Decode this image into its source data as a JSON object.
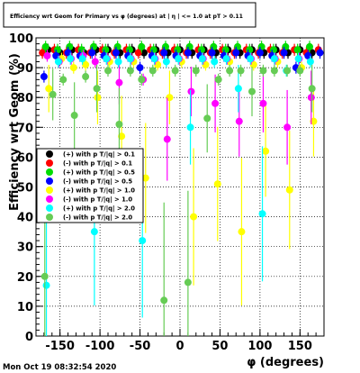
{
  "chart_data": {
    "type": "scatter",
    "title": "Efficiency wrt Geom for Primary vs φ (degrees) at | η | <= 1.0 at pT > 0.11",
    "xlabel": "φ (degrees)",
    "ylabel": "Efficiency wrt Geom (%)",
    "xlim": [
      -180,
      180
    ],
    "ylim": [
      0,
      100
    ],
    "xticks": [
      -150,
      -100,
      -50,
      0,
      50,
      100,
      150
    ],
    "yticks": [
      0,
      10,
      20,
      30,
      40,
      50,
      60,
      70,
      80,
      90,
      100
    ],
    "grid": true,
    "legend_position": "left, middle",
    "timestamp": "Mon Oct 19 08:32:54 2020",
    "series": [
      {
        "name": "(+) with p T/|q| > 0.1",
        "color": "#000000",
        "points": [
          [
            -165,
            96
          ],
          [
            -150,
            95
          ],
          [
            -135,
            96
          ],
          [
            -120,
            95
          ],
          [
            -105,
            96
          ],
          [
            -90,
            96
          ],
          [
            -75,
            95
          ],
          [
            -60,
            96
          ],
          [
            -45,
            95
          ],
          [
            -30,
            96
          ],
          [
            -15,
            95
          ],
          [
            0,
            96
          ],
          [
            15,
            95
          ],
          [
            30,
            96
          ],
          [
            45,
            95
          ],
          [
            60,
            96
          ],
          [
            75,
            95
          ],
          [
            90,
            96
          ],
          [
            105,
            95
          ],
          [
            120,
            96
          ],
          [
            135,
            95
          ],
          [
            150,
            96
          ],
          [
            165,
            95
          ]
        ]
      },
      {
        "name": "(-) with p T/|q| > 0.1",
        "color": "#ff0000",
        "points": [
          [
            -172,
            95
          ],
          [
            -157,
            96
          ],
          [
            -142,
            95
          ],
          [
            -127,
            96
          ],
          [
            -112,
            95
          ],
          [
            -97,
            96
          ],
          [
            -82,
            95
          ],
          [
            -67,
            96
          ],
          [
            -52,
            95
          ],
          [
            -37,
            96
          ],
          [
            -22,
            95
          ],
          [
            -7,
            96
          ],
          [
            8,
            95
          ],
          [
            23,
            96
          ],
          [
            38,
            95
          ],
          [
            53,
            96
          ],
          [
            68,
            95
          ],
          [
            83,
            96
          ],
          [
            98,
            95
          ],
          [
            113,
            96
          ],
          [
            128,
            95
          ],
          [
            143,
            96
          ],
          [
            158,
            95
          ],
          [
            173,
            96
          ]
        ]
      },
      {
        "name": "(+) with p T/|q| > 0.5",
        "color": "#00dd00",
        "points": [
          [
            -168,
            97
          ],
          [
            -153,
            96
          ],
          [
            -138,
            97
          ],
          [
            -123,
            96
          ],
          [
            -108,
            97
          ],
          [
            -93,
            96
          ],
          [
            -78,
            97
          ],
          [
            -63,
            96
          ],
          [
            -48,
            97
          ],
          [
            -33,
            96
          ],
          [
            -18,
            97
          ],
          [
            -3,
            96
          ],
          [
            12,
            97
          ],
          [
            27,
            96
          ],
          [
            42,
            97
          ],
          [
            57,
            96
          ],
          [
            72,
            97
          ],
          [
            87,
            96
          ],
          [
            102,
            97
          ],
          [
            117,
            96
          ],
          [
            132,
            97
          ],
          [
            147,
            96
          ],
          [
            162,
            97
          ]
        ]
      },
      {
        "name": "(-) with p T/|q| > 0.5",
        "color": "#0000ff",
        "points": [
          [
            -170,
            87
          ],
          [
            -155,
            94
          ],
          [
            -140,
            95
          ],
          [
            -125,
            94
          ],
          [
            -110,
            95
          ],
          [
            -95,
            94
          ],
          [
            -80,
            95
          ],
          [
            -65,
            94
          ],
          [
            -50,
            90
          ],
          [
            -35,
            94
          ],
          [
            -20,
            95
          ],
          [
            -5,
            94
          ],
          [
            10,
            95
          ],
          [
            25,
            94
          ],
          [
            40,
            95
          ],
          [
            55,
            94
          ],
          [
            70,
            95
          ],
          [
            85,
            94
          ],
          [
            100,
            95
          ],
          [
            115,
            94
          ],
          [
            130,
            95
          ],
          [
            145,
            90
          ],
          [
            160,
            94
          ],
          [
            175,
            95
          ]
        ]
      },
      {
        "name": "(+) with p T/|q| > 1.0",
        "color": "#ffff00",
        "points": [
          [
            -164,
            83
          ],
          [
            -148,
            93
          ],
          [
            -133,
            90
          ],
          [
            -118,
            91
          ],
          [
            -103,
            80
          ],
          [
            -88,
            92
          ],
          [
            -73,
            67
          ],
          [
            -58,
            92
          ],
          [
            -43,
            53
          ],
          [
            -28,
            91
          ],
          [
            -13,
            80
          ],
          [
            2,
            92
          ],
          [
            17,
            40
          ],
          [
            32,
            91
          ],
          [
            47,
            51
          ],
          [
            62,
            92
          ],
          [
            77,
            35
          ],
          [
            92,
            91
          ],
          [
            107,
            62
          ],
          [
            122,
            92
          ],
          [
            137,
            49
          ],
          [
            152,
            90
          ],
          [
            167,
            72
          ]
        ]
      },
      {
        "name": "(-) with p T/|q| > 1.0",
        "color": "#ff00ff",
        "points": [
          [
            -166,
            94
          ],
          [
            -151,
            92
          ],
          [
            -136,
            93
          ],
          [
            -121,
            94
          ],
          [
            -106,
            92
          ],
          [
            -91,
            93
          ],
          [
            -76,
            85
          ],
          [
            -61,
            93
          ],
          [
            -46,
            86
          ],
          [
            -31,
            93
          ],
          [
            -16,
            66
          ],
          [
            -1,
            93
          ],
          [
            14,
            82
          ],
          [
            29,
            93
          ],
          [
            44,
            78
          ],
          [
            59,
            93
          ],
          [
            74,
            72
          ],
          [
            89,
            93
          ],
          [
            104,
            78
          ],
          [
            119,
            93
          ],
          [
            134,
            70
          ],
          [
            149,
            93
          ],
          [
            164,
            80
          ]
        ]
      },
      {
        "name": "(+) with p T/|q| > 2.0",
        "color": "#00ffff",
        "points": [
          [
            -167,
            17
          ],
          [
            -152,
            92
          ],
          [
            -137,
            93
          ],
          [
            -122,
            93
          ],
          [
            -107,
            35
          ],
          [
            -92,
            93
          ],
          [
            -77,
            92
          ],
          [
            -62,
            93
          ],
          [
            -47,
            32
          ],
          [
            -32,
            93
          ],
          [
            -17,
            92
          ],
          [
            -2,
            93
          ],
          [
            13,
            70
          ],
          [
            28,
            93
          ],
          [
            43,
            92
          ],
          [
            58,
            93
          ],
          [
            73,
            83
          ],
          [
            88,
            93
          ],
          [
            103,
            41
          ],
          [
            118,
            93
          ],
          [
            133,
            89
          ],
          [
            148,
            93
          ],
          [
            163,
            92
          ]
        ]
      },
      {
        "name": "(-) with p T/|q| > 2.0",
        "color": "#66cc55",
        "points": [
          [
            -169,
            20
          ],
          [
            -159,
            81
          ],
          [
            -146,
            86
          ],
          [
            -132,
            74
          ],
          [
            -118,
            87
          ],
          [
            -104,
            83
          ],
          [
            -90,
            89
          ],
          [
            -76,
            71
          ],
          [
            -62,
            89
          ],
          [
            -48,
            86
          ],
          [
            -34,
            89
          ],
          [
            -20,
            12
          ],
          [
            -6,
            89
          ],
          [
            10,
            18
          ],
          [
            20,
            89
          ],
          [
            34,
            73
          ],
          [
            48,
            86
          ],
          [
            62,
            89
          ],
          [
            76,
            89
          ],
          [
            90,
            82
          ],
          [
            104,
            89
          ],
          [
            118,
            89
          ],
          [
            134,
            89
          ],
          [
            150,
            89
          ],
          [
            165,
            83
          ]
        ]
      }
    ]
  }
}
